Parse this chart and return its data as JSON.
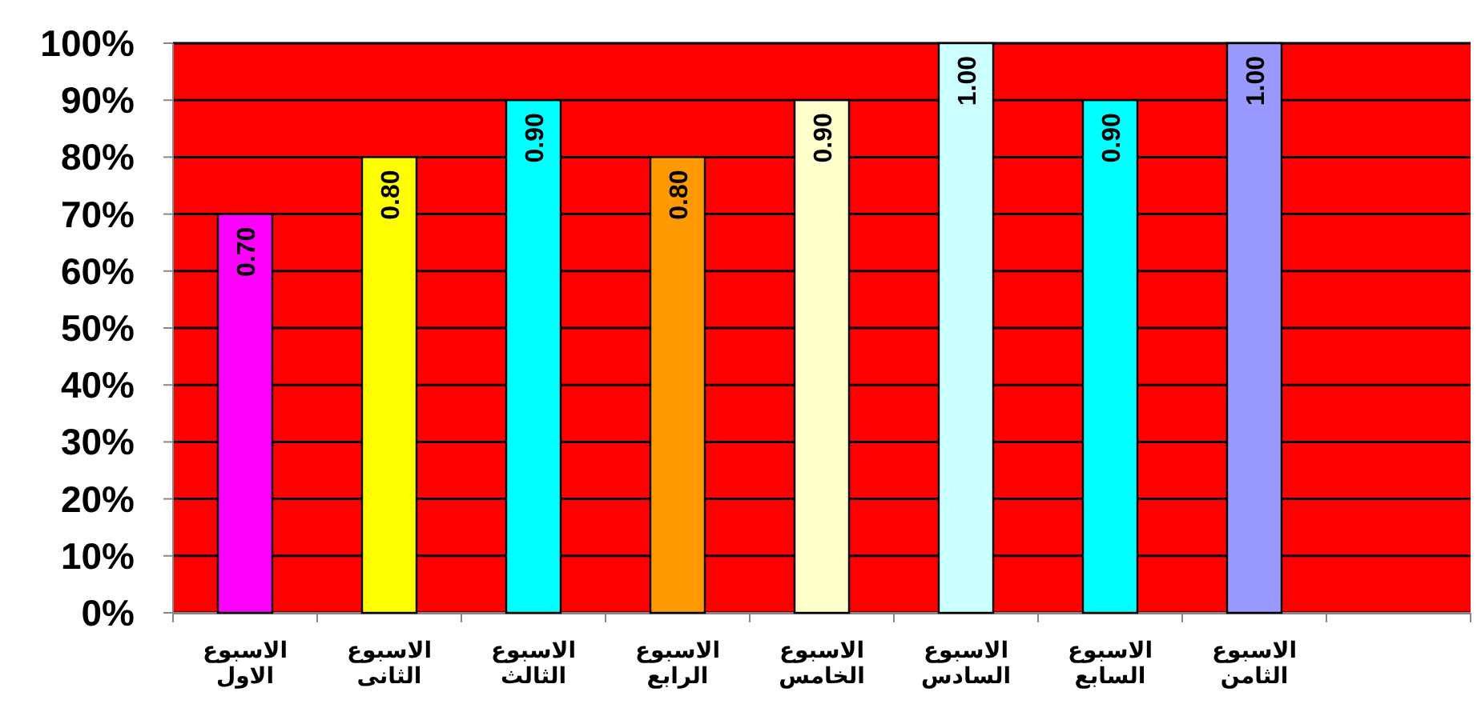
{
  "chart_data": {
    "type": "bar",
    "categories": [
      "الاسبوع الاول",
      "الاسبوع الثانى",
      "الاسبوع الثالث",
      "الاسبوع الرابع",
      "الاسبوع الخامس",
      "الاسبوع السادس",
      "الاسبوع السابع",
      "الاسبوع الثامن",
      null
    ],
    "values": [
      0.7,
      0.8,
      0.9,
      0.8,
      0.9,
      1.0,
      0.9,
      1.0,
      null
    ],
    "colors": [
      "#ff00ff",
      "#ffff00",
      "#00ffff",
      "#ff9900",
      "#ffffcc",
      "#ccffff",
      "#00ffff",
      "#9999ff",
      null
    ],
    "value_labels": [
      "0.70",
      "0.80",
      "0.90",
      "0.80",
      "0.90",
      "1.00",
      "0.90",
      "1.00",
      null
    ],
    "ylim": [
      0,
      1
    ],
    "yticks": [
      {
        "value": 0,
        "label": "0%"
      },
      {
        "value": 0.1,
        "label": "10%"
      },
      {
        "value": 0.2,
        "label": "20%"
      },
      {
        "value": 0.3,
        "label": "30%"
      },
      {
        "value": 0.4,
        "label": "40%"
      },
      {
        "value": 0.5,
        "label": "50%"
      },
      {
        "value": 0.6,
        "label": "60%"
      },
      {
        "value": 0.7,
        "label": "70%"
      },
      {
        "value": 0.8,
        "label": "80%"
      },
      {
        "value": 0.9,
        "label": "90%"
      },
      {
        "value": 1,
        "label": "100%"
      }
    ],
    "grid": "y"
  }
}
